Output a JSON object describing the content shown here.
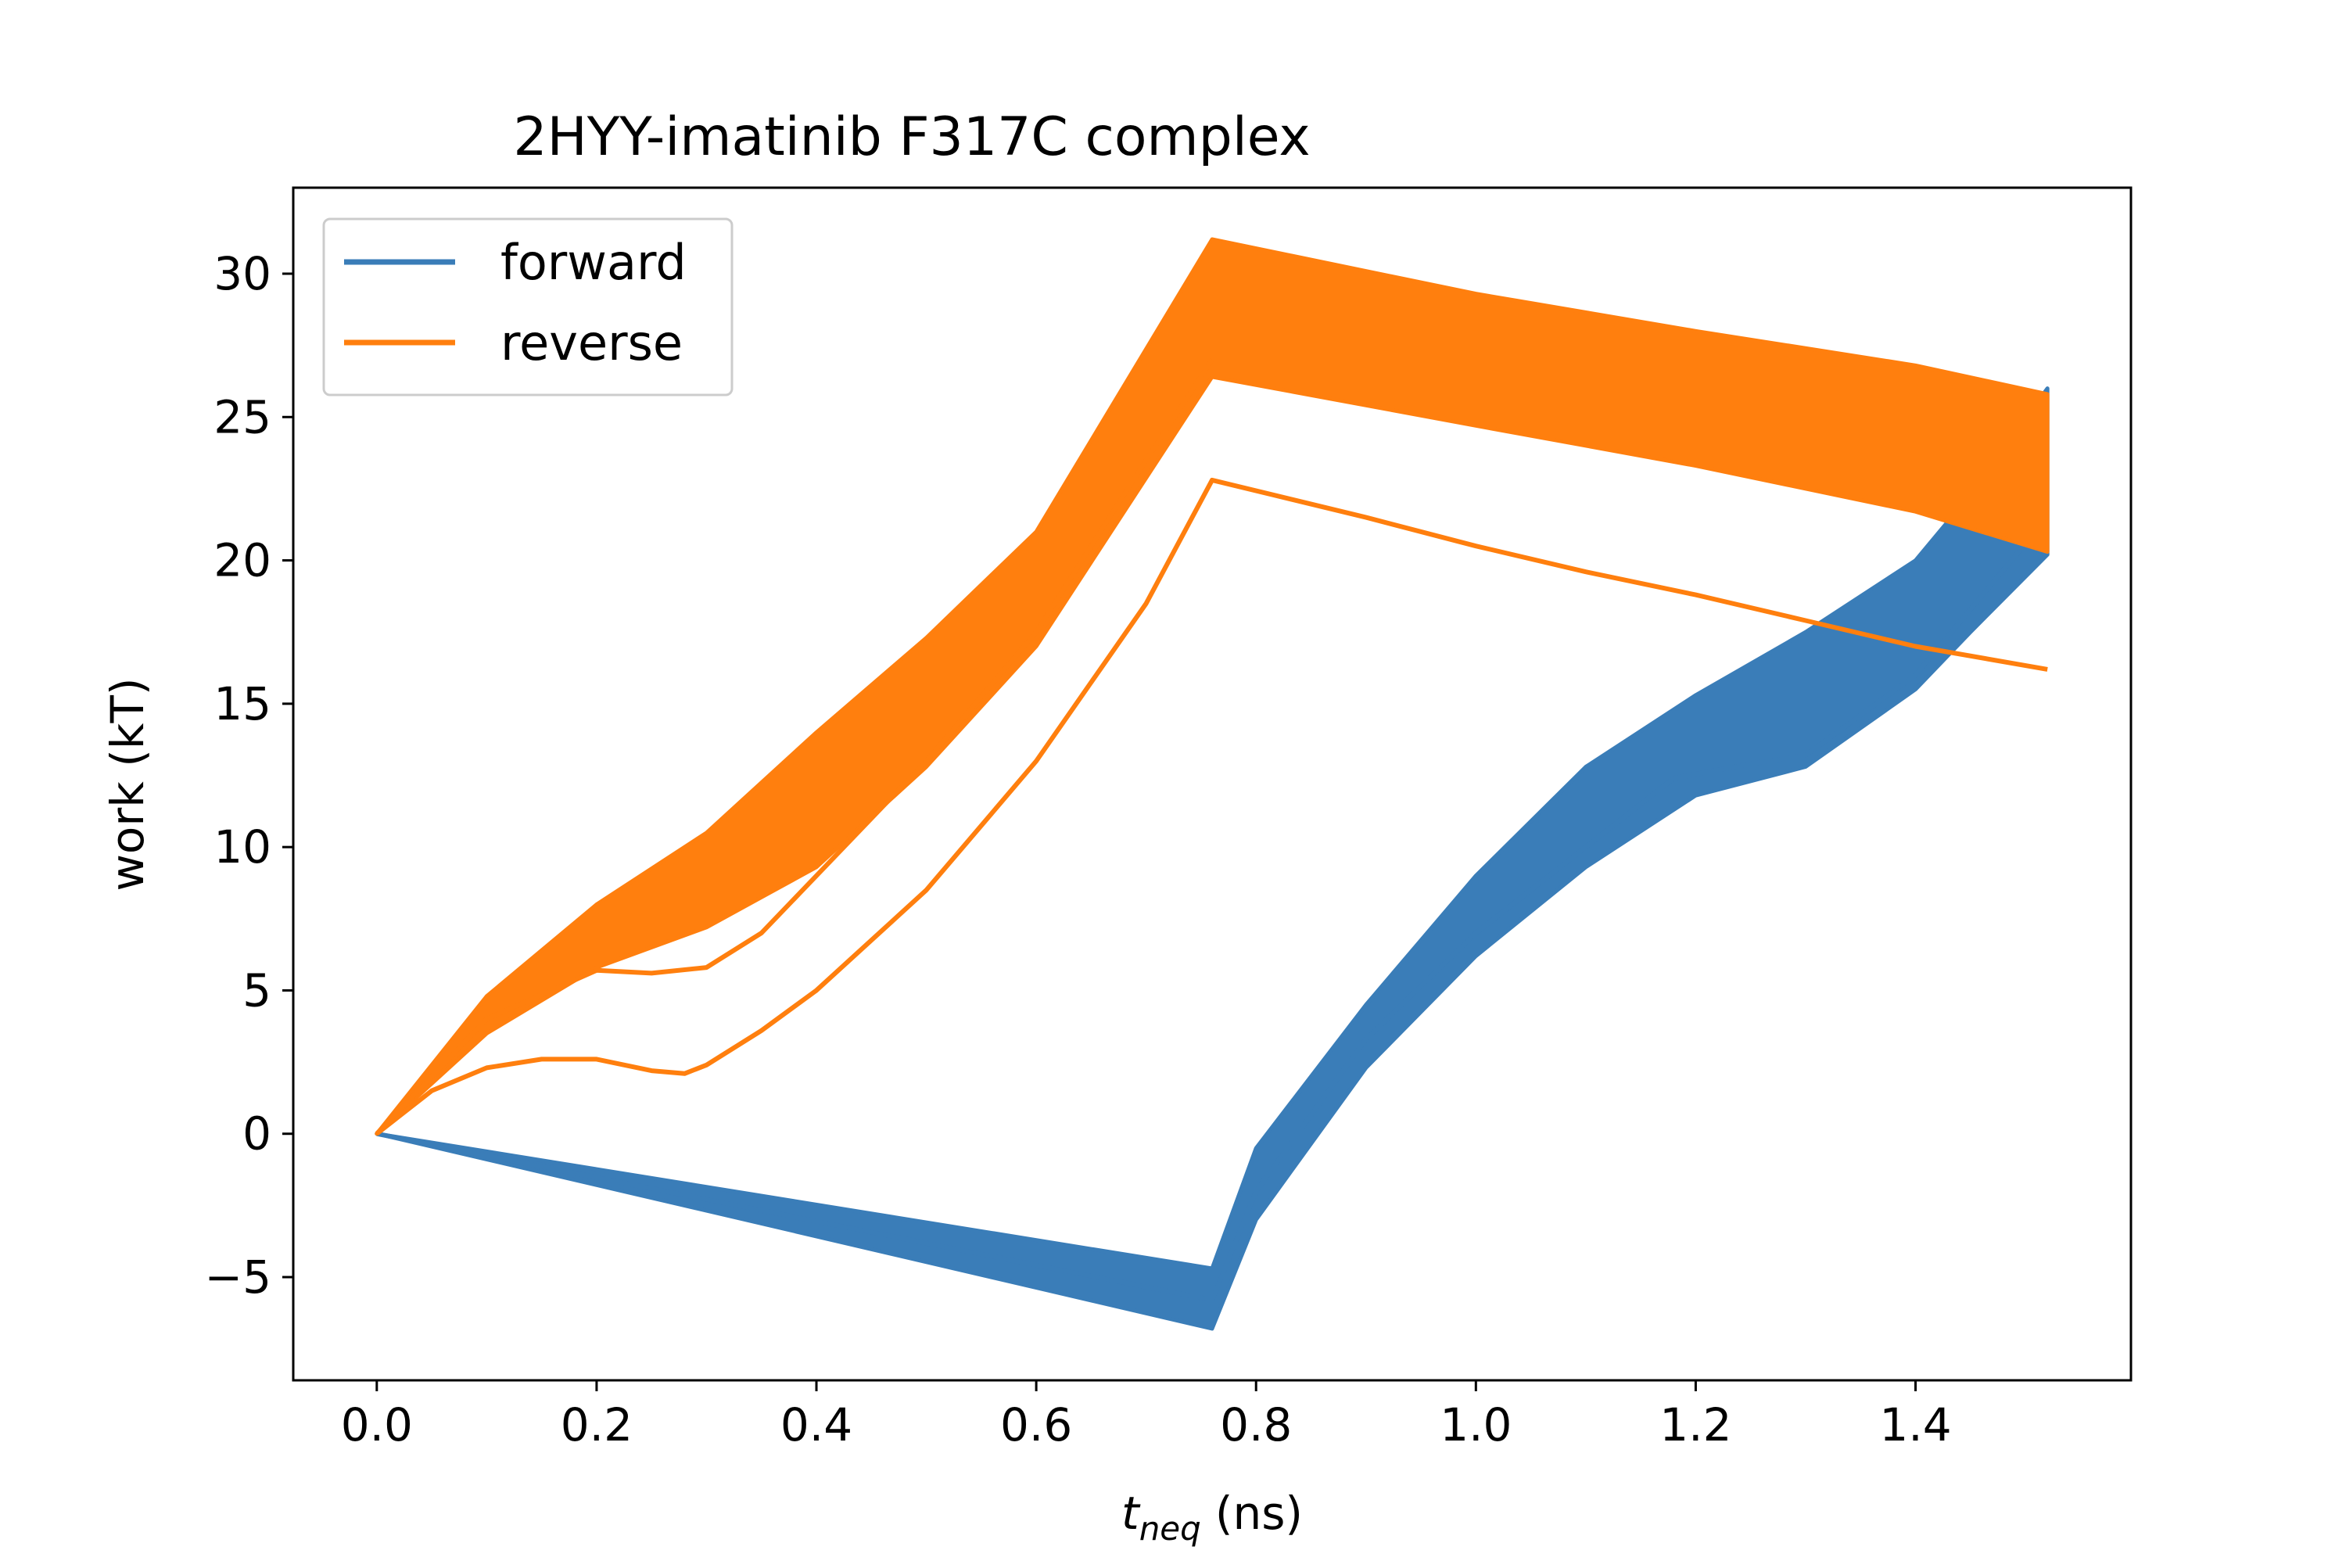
{
  "chart_data": {
    "type": "line",
    "title": "2HYY-imatinib F317C complex",
    "xlabel": {
      "main": "t",
      "subscript": "neq",
      "unit": "(ns)"
    },
    "ylabel": "work (kT)",
    "xlim": [
      -0.076,
      1.596
    ],
    "ylim": [
      -8.6,
      33.0
    ],
    "xticks": [
      0.0,
      0.2,
      0.4,
      0.6,
      0.8,
      1.0,
      1.2,
      1.4
    ],
    "xtick_labels": [
      "0.0",
      "0.2",
      "0.4",
      "0.6",
      "0.8",
      "1.0",
      "1.2",
      "1.4"
    ],
    "yticks": [
      -5,
      0,
      5,
      10,
      15,
      20,
      25,
      30
    ],
    "ytick_labels": [
      "−5",
      "0",
      "5",
      "10",
      "15",
      "20",
      "25",
      "30"
    ],
    "grid": false,
    "legend": {
      "placement": "upper-left"
    },
    "colors": {
      "forward": "#3a7db8",
      "reverse": "#ff7f0e"
    },
    "series": [
      {
        "name": "forward",
        "color": "#3a7db8",
        "envelope_upper": {
          "x": [
            0.0,
            0.76,
            0.8,
            0.9,
            1.0,
            1.1,
            1.2,
            1.3,
            1.4,
            1.45,
            1.52
          ],
          "y": [
            0.0,
            -4.7,
            -0.5,
            4.5,
            9.0,
            12.8,
            15.3,
            17.5,
            20.0,
            22.3,
            26.0
          ]
        },
        "envelope_lower": {
          "x": [
            0.0,
            0.76,
            0.8,
            0.9,
            1.0,
            1.1,
            1.2,
            1.3,
            1.4,
            1.45,
            1.52
          ],
          "y": [
            0.0,
            -6.8,
            -3.0,
            2.3,
            6.2,
            9.3,
            11.8,
            12.8,
            15.5,
            17.5,
            20.2
          ]
        },
        "lines": [
          {
            "x": [
              0.0,
              0.76,
              0.8,
              0.9,
              1.0,
              1.1,
              1.18,
              1.25,
              1.3,
              1.4,
              1.52
            ],
            "y": [
              0.0,
              -5.8,
              -2.0,
              3.3,
              7.0,
              10.0,
              12.4,
              12.9,
              13.2,
              16.0,
              21.5
            ]
          }
        ]
      },
      {
        "name": "reverse",
        "color": "#ff7f0e",
        "envelope_upper": {
          "x": [
            0.0,
            0.1,
            0.2,
            0.3,
            0.4,
            0.5,
            0.6,
            0.76,
            1.0,
            1.2,
            1.4,
            1.52
          ],
          "y": [
            0.0,
            4.8,
            8.0,
            10.5,
            14.0,
            17.3,
            21.0,
            31.2,
            29.3,
            28.0,
            26.8,
            25.8
          ]
        },
        "envelope_lower": {
          "x": [
            0.0,
            0.1,
            0.2,
            0.3,
            0.4,
            0.5,
            0.6,
            0.76,
            1.0,
            1.2,
            1.4,
            1.52
          ],
          "y": [
            0.0,
            3.5,
            5.8,
            7.2,
            9.3,
            12.8,
            17.0,
            26.4,
            24.7,
            23.3,
            21.7,
            20.3
          ]
        },
        "lines": [
          {
            "x": [
              0.0,
              0.05,
              0.1,
              0.15,
              0.2,
              0.25,
              0.28,
              0.3,
              0.35,
              0.4,
              0.5,
              0.6,
              0.7,
              0.76,
              0.9,
              1.0,
              1.1,
              1.2,
              1.3,
              1.4,
              1.52
            ],
            "y": [
              0.0,
              1.5,
              2.3,
              2.6,
              2.6,
              2.2,
              2.1,
              2.4,
              3.6,
              5.0,
              8.5,
              13.0,
              18.5,
              22.8,
              21.5,
              20.5,
              19.6,
              18.8,
              17.9,
              17.0,
              16.2
            ]
          },
          {
            "x": [
              0.0,
              0.1,
              0.2,
              0.25,
              0.3,
              0.35,
              0.4,
              0.5,
              0.6,
              0.7,
              0.76
            ],
            "y": [
              0.0,
              4.0,
              5.7,
              5.6,
              5.8,
              7.0,
              9.0,
              13.0,
              17.5,
              23.5,
              27.0
            ]
          }
        ]
      }
    ]
  }
}
